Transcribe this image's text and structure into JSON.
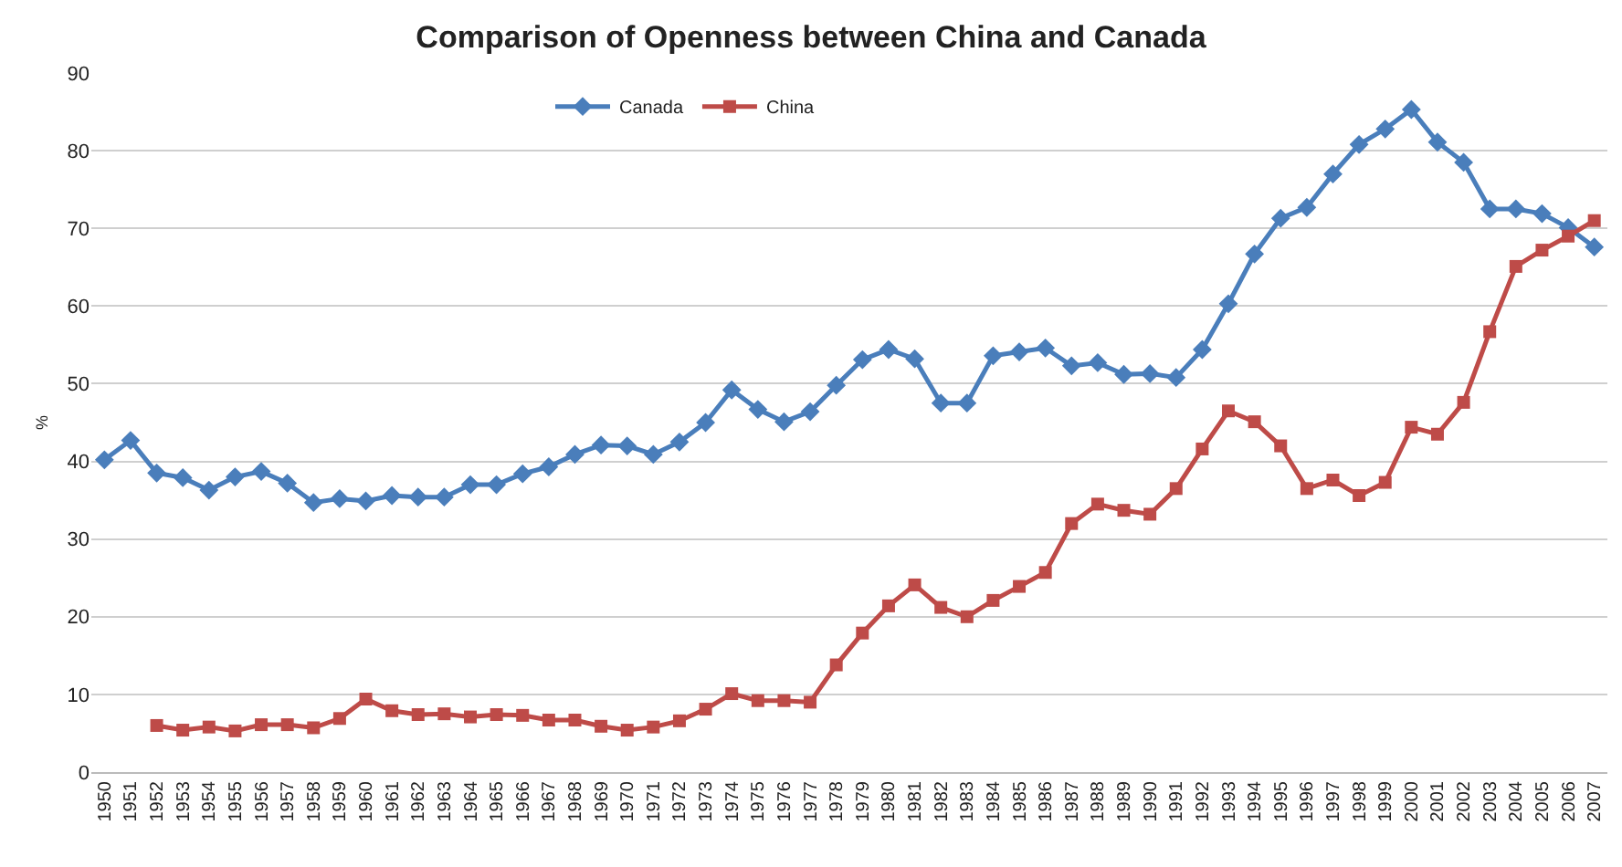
{
  "chart_data": {
    "type": "line",
    "title": "Comparison of Openness between China and Canada",
    "ylabel": "%",
    "categories": [
      "1950",
      "1951",
      "1952",
      "1953",
      "1954",
      "1955",
      "1956",
      "1957",
      "1958",
      "1959",
      "1960",
      "1961",
      "1962",
      "1963",
      "1964",
      "1965",
      "1966",
      "1967",
      "1968",
      "1969",
      "1970",
      "1971",
      "1972",
      "1973",
      "1974",
      "1975",
      "1976",
      "1977",
      "1978",
      "1979",
      "1980",
      "1981",
      "1982",
      "1983",
      "1984",
      "1985",
      "1986",
      "1987",
      "1988",
      "1989",
      "1990",
      "1991",
      "1992",
      "1993",
      "1994",
      "1995",
      "1996",
      "1997",
      "1998",
      "1999",
      "2000",
      "2001",
      "2002",
      "2003",
      "2004",
      "2005",
      "2006",
      "2007"
    ],
    "series": [
      {
        "name": "Canada",
        "color": "#4a7ebb",
        "marker": "diamond",
        "values": [
          40.2,
          42.7,
          38.5,
          37.9,
          36.3,
          38.0,
          38.7,
          37.2,
          34.7,
          35.2,
          34.9,
          35.6,
          35.4,
          35.4,
          37.0,
          37.0,
          38.4,
          39.3,
          40.9,
          42.1,
          42.0,
          40.9,
          42.5,
          45.0,
          49.2,
          46.7,
          45.1,
          46.4,
          49.8,
          53.1,
          54.4,
          53.2,
          47.5,
          47.5,
          53.6,
          54.1,
          54.6,
          52.3,
          52.7,
          51.2,
          51.3,
          50.8,
          54.4,
          60.3,
          66.7,
          71.3,
          72.7,
          77.0,
          80.8,
          82.8,
          85.3,
          81.1,
          78.5,
          72.5,
          72.5,
          71.9,
          70.1,
          67.6
        ]
      },
      {
        "name": "China",
        "color": "#be4b48",
        "marker": "square",
        "values": [
          null,
          null,
          6.0,
          5.4,
          5.8,
          5.3,
          6.1,
          6.1,
          5.7,
          6.9,
          9.4,
          7.9,
          7.4,
          7.5,
          7.1,
          7.4,
          7.3,
          6.7,
          6.7,
          5.9,
          5.4,
          5.8,
          6.6,
          8.1,
          10.1,
          9.2,
          9.2,
          9.0,
          13.8,
          17.9,
          21.4,
          24.1,
          21.2,
          20.0,
          22.1,
          23.9,
          25.7,
          32.0,
          34.5,
          33.7,
          33.2,
          36.5,
          41.6,
          46.5,
          45.1,
          42.0,
          36.5,
          37.6,
          35.6,
          37.3,
          44.4,
          43.5,
          47.6,
          56.7,
          65.1,
          67.2,
          69.0,
          71.0
        ]
      }
    ],
    "ylim": [
      0,
      90
    ],
    "yticks": [
      0,
      10,
      20,
      30,
      40,
      50,
      60,
      70,
      80,
      90
    ],
    "grid": "y",
    "legend": "top",
    "line_style": "solid"
  }
}
